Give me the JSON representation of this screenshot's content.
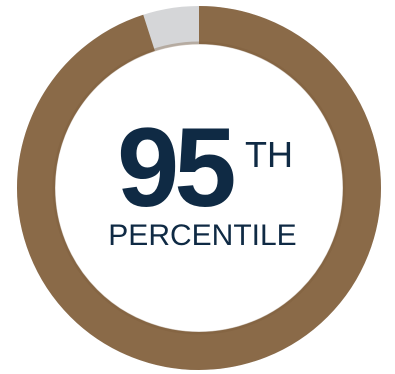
{
  "percentile_badge": {
    "value": "95",
    "suffix": "TH",
    "caption": "PERCENTILE",
    "fill_fraction": 0.95,
    "colors": {
      "ring_fill": "#8a6a48",
      "ring_fill_shadow": "#7a5c3c",
      "ring_track": "#d5d6d8",
      "text": "#0f2a44",
      "background": "#ffffff"
    }
  }
}
